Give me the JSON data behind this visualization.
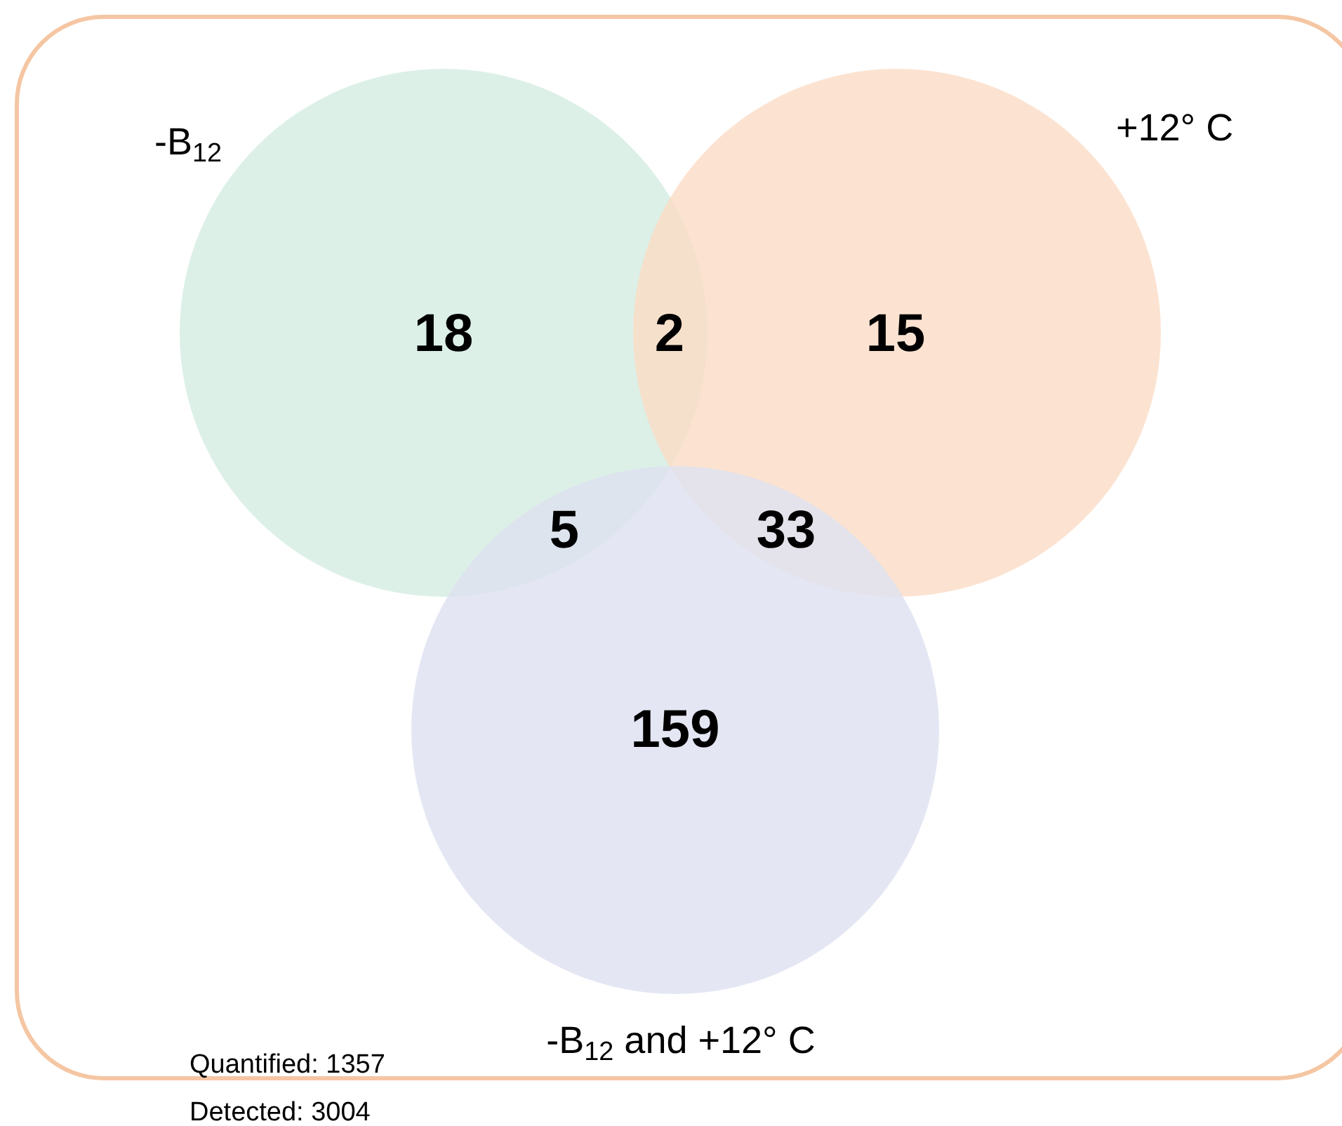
{
  "chart_data": {
    "type": "other",
    "categories": [
      null,
      null,
      null,
      null,
      null,
      null
    ],
    "values": [
      18,
      2,
      15,
      5,
      33,
      159
    ],
    "data_labels": true,
    "annotations": [
      "-B$_{12}$",
      "+12° C",
      "-B$_{12}$ and +12° C",
      "Quantified: 1357",
      "Detected: 3004"
    ]
  }
}
